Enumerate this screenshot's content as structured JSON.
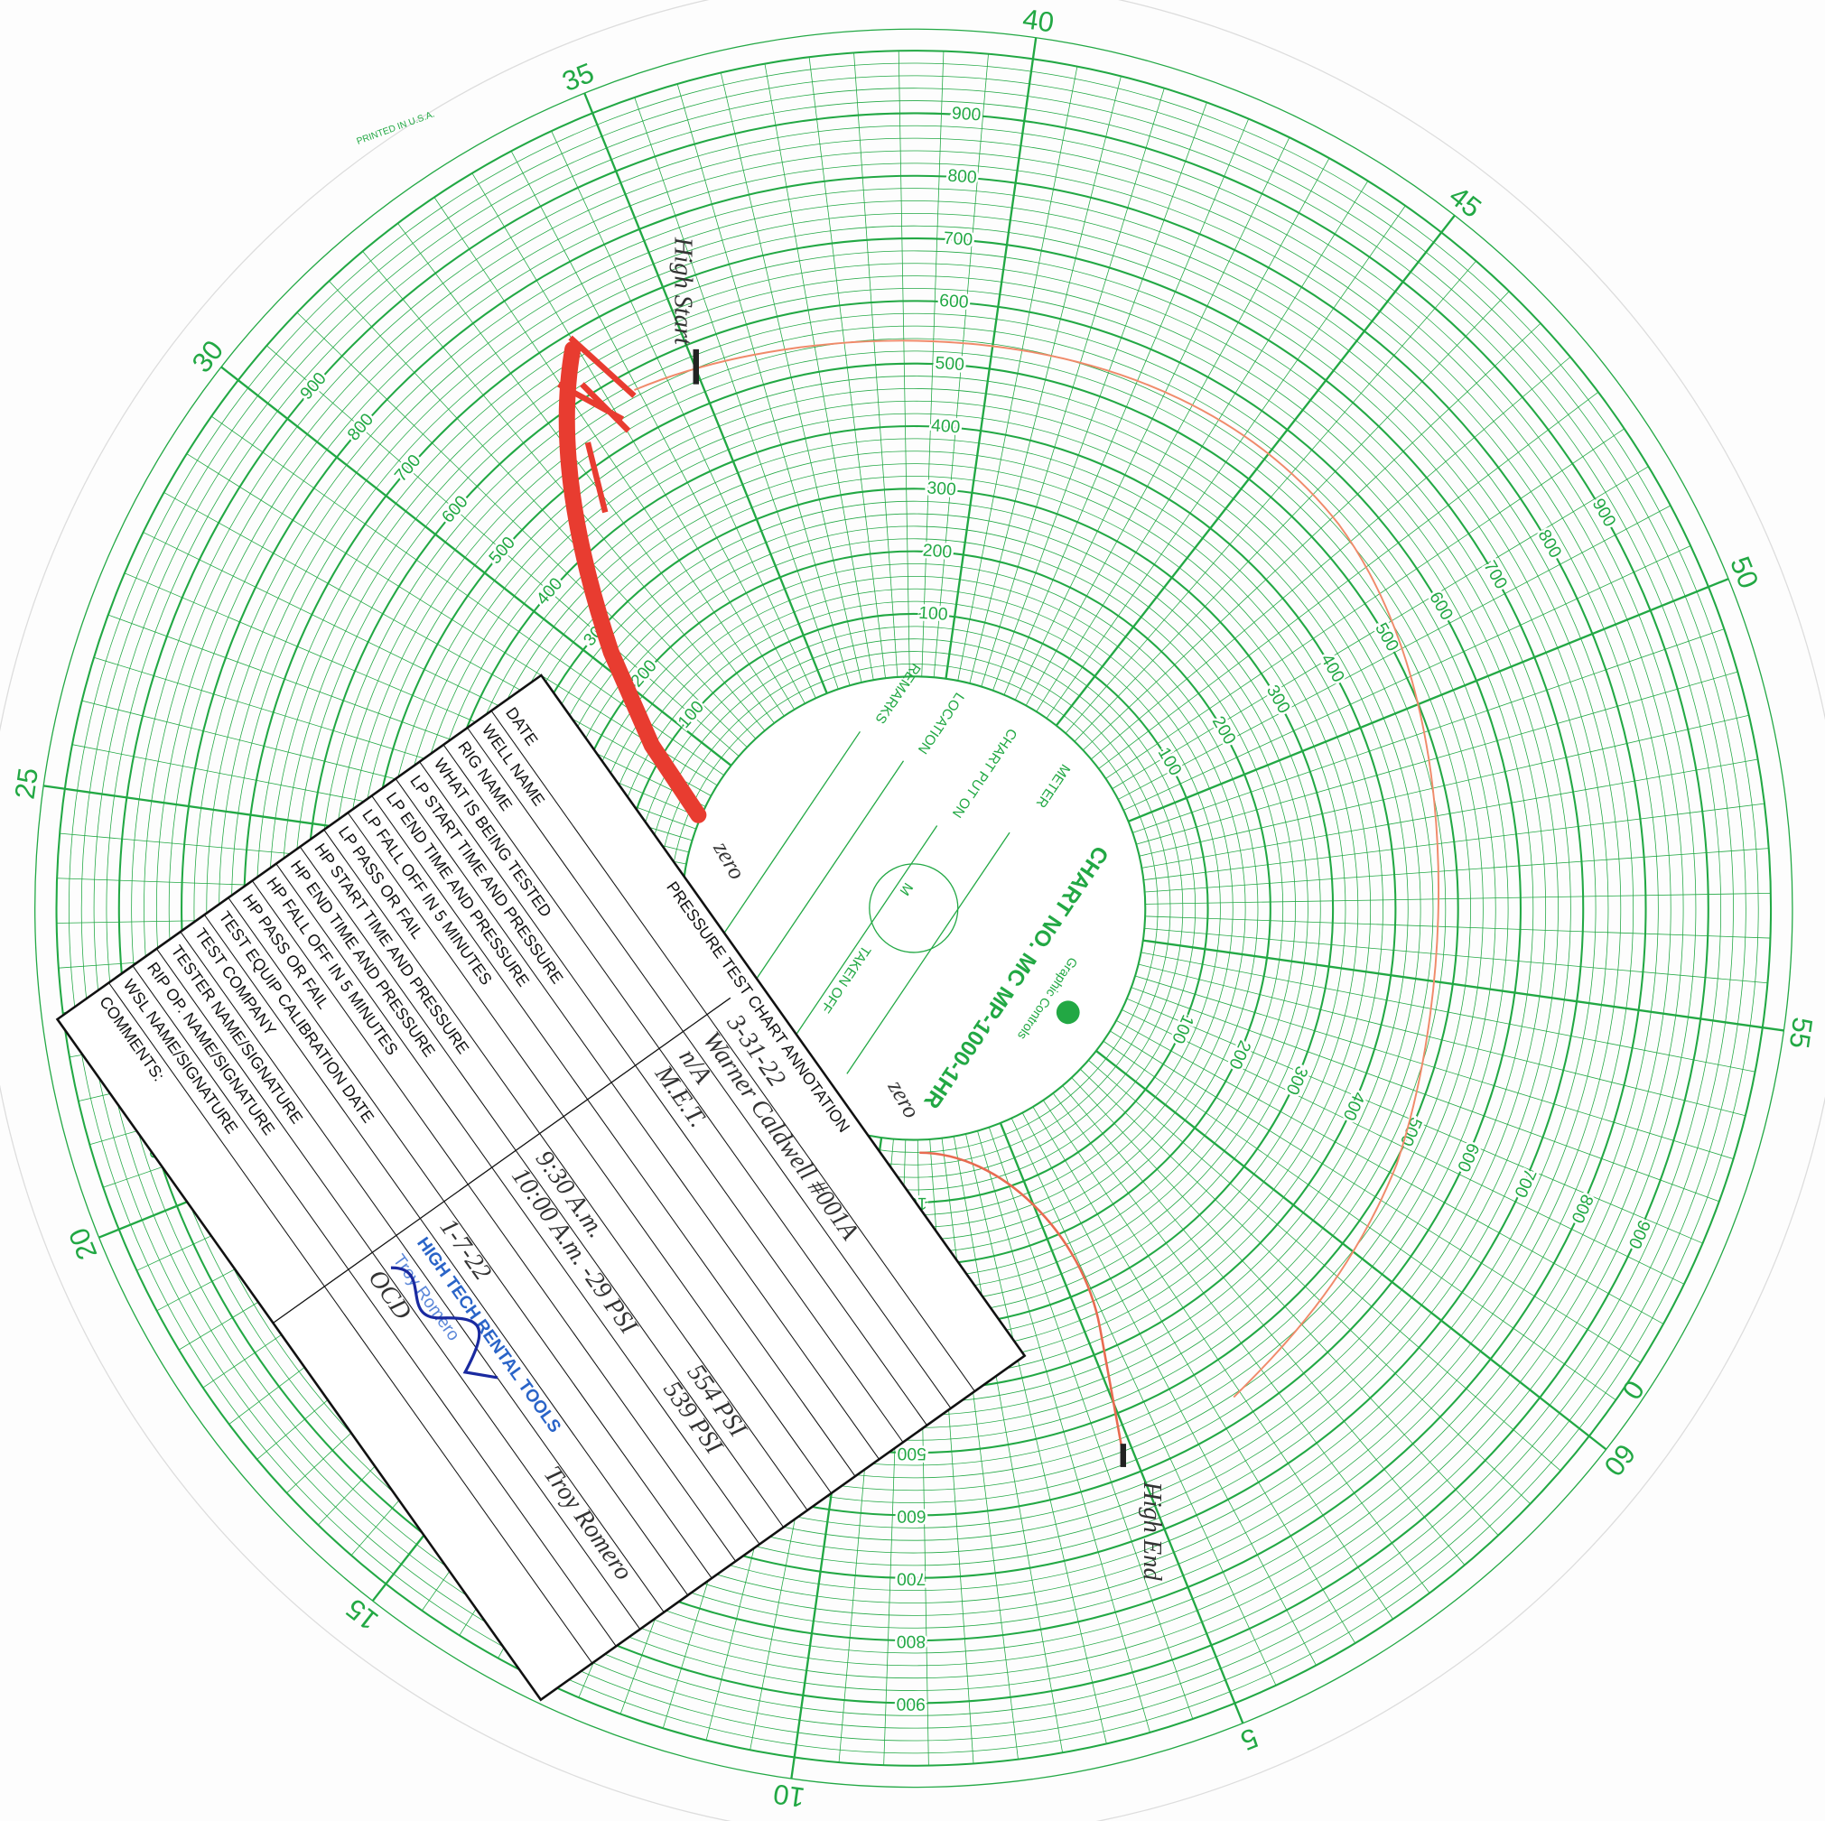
{
  "chart_paper": {
    "chart_no": "CHART NO. MC MP-1000-1HR",
    "meter": "METER",
    "chart_put_on": "CHART PUT ON",
    "location": "LOCATION",
    "remarks": "REMARKS",
    "taken_off": "TAKEN OFF",
    "m": "M",
    "brand": "Graphic Controls",
    "printed": "PRINTED IN U.S.A.",
    "minute_labels": [
      "0",
      "5",
      "10",
      "15",
      "20",
      "25",
      "30",
      "35",
      "40",
      "45",
      "50",
      "55",
      "60"
    ],
    "pressure_labels": [
      "100",
      "200",
      "300",
      "400",
      "500",
      "600",
      "700",
      "800",
      "900"
    ]
  },
  "handwritten": {
    "high_start": "High Start",
    "high_end": "High End",
    "zero_1": "zero",
    "zero_2": "zero"
  },
  "form": {
    "title": "PRESSURE TEST CHART ANNOTATION",
    "rows": [
      {
        "label": "DATE",
        "values": [
          "3-31-22"
        ]
      },
      {
        "label": "WELL NAME",
        "values": [
          "Warner Caldwell #001A"
        ]
      },
      {
        "label": "RIG NAME",
        "values": [
          "n/A"
        ]
      },
      {
        "label": "WHAT IS BEING TESTED",
        "values": [
          "M.E.T."
        ]
      },
      {
        "label": "LP START TIME AND PRESSURE",
        "values": []
      },
      {
        "label": "LP END TIME AND PRESSURE",
        "values": []
      },
      {
        "label": "LP FALL OFF IN 5 MINUTES",
        "values": []
      },
      {
        "label": "LP PASS OR FAIL",
        "values": []
      },
      {
        "label": "HP START TIME AND PRESSURE",
        "values": [
          "9:30 A.m.",
          "554 PSI"
        ]
      },
      {
        "label": "HP END TIME AND PRESSURE",
        "values": [
          "10:00 A.m. -29 PSI",
          "539 PSI"
        ]
      },
      {
        "label": "HP FALL OFF IN 5 MINUTES",
        "values": []
      },
      {
        "label": "HP PASS OR FAIL",
        "values": []
      },
      {
        "label": "TEST EQUIP CALIBRATION DATE",
        "values": [
          "1-7-22"
        ]
      },
      {
        "label": "TEST COMPANY",
        "values": [
          "HIGH TECH RENTAL TOOLS"
        ]
      },
      {
        "label": "TESTER NAME/SIGNATURE",
        "values": [
          "Troy Romero",
          "Troy Romero"
        ]
      },
      {
        "label": "RIP OP. NAME/SIGNATURE",
        "values": [
          "OCD"
        ]
      },
      {
        "label": "WSL NAME/SIGNATURE",
        "values": []
      },
      {
        "label": "COMMENTS:",
        "values": []
      }
    ]
  }
}
